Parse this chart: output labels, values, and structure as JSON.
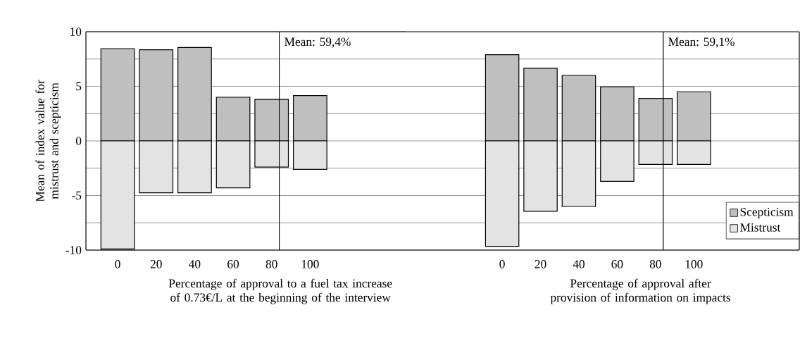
{
  "chart_data": [
    {
      "type": "bar",
      "x": [
        0,
        20,
        40,
        60,
        80,
        100
      ],
      "xlabel": "Percentage of approval to a fuel tax increase of 0.73€/L at the beginning of the interview",
      "ylabel": "Mean of index value for mistrust and scepticism",
      "series": [
        {
          "color": "#bfbfbf",
          "values": [
            8.45,
            8.35,
            8.55,
            4.0,
            3.8,
            4.15
          ]
        },
        {
          "color": "#e3e3e3",
          "values": [
            -9.9,
            -4.75,
            -4.75,
            -4.3,
            -2.4,
            -2.6
          ]
        }
      ],
      "stacked": true,
      "xlim": [
        -16.5,
        150
      ],
      "xticks": [
        0,
        20,
        40,
        60,
        80,
        100
      ],
      "ylim": [
        -10,
        10
      ],
      "yticks": [
        -10,
        {
          "value": -7.5,
          "label": null
        },
        -5,
        {
          "value": -2.5,
          "label": null
        },
        0,
        {
          "value": 2.5,
          "label": null
        },
        5,
        {
          "value": 7.5,
          "label": null
        },
        10
      ],
      "grid": "y",
      "ref_lines": [
        {
          "axis": "x",
          "value": 84,
          "color": "#000000"
        }
      ],
      "annotations": [
        {
          "text": "Mean: 59,4%",
          "x": 84,
          "y": 9
        }
      ]
    },
    {
      "type": "bar",
      "x": [
        0,
        20,
        40,
        60,
        80,
        100
      ],
      "xlabel": "Percentage of approval after provision of information on impacts",
      "series": [
        {
          "name": "Scepticism",
          "color": "#bfbfbf",
          "values": [
            7.9,
            6.65,
            6.0,
            4.95,
            3.9,
            4.5
          ]
        },
        {
          "name": "Mistrust",
          "color": "#e3e3e3",
          "values": [
            -9.65,
            -6.45,
            -6.0,
            -3.7,
            -2.15,
            -2.15
          ]
        }
      ],
      "stacked": true,
      "xlim": [
        -50,
        155
      ],
      "xticks": [
        0,
        20,
        40,
        60,
        80,
        100
      ],
      "ylim": [
        -10,
        10
      ],
      "yticks": [
        -10,
        {
          "value": -7.5,
          "label": null
        },
        -5,
        {
          "value": -2.5,
          "label": null
        },
        0,
        {
          "value": 2.5,
          "label": null
        },
        5,
        {
          "value": 7.5,
          "label": null
        },
        10
      ],
      "grid": "y",
      "tick_labels": "x",
      "legend": "bottom right",
      "ref_lines": [
        {
          "axis": "x",
          "value": 84,
          "color": "#000000"
        }
      ],
      "annotations": [
        {
          "text": "Mean: 59,1%",
          "x": 84,
          "y": 9
        }
      ]
    }
  ]
}
